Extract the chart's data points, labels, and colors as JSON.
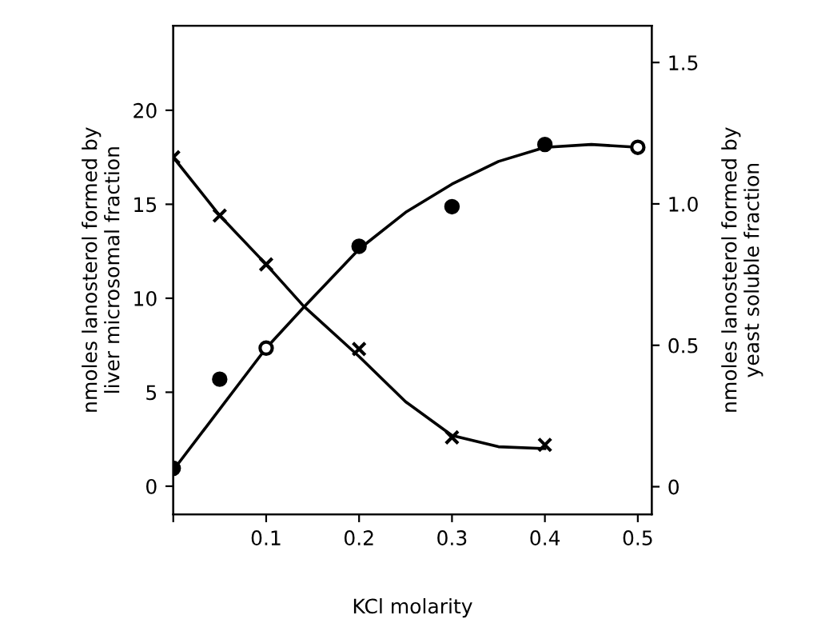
{
  "chart_data": {
    "type": "scatter",
    "xlabel": "KCl molarity",
    "ylabel": "nmoles lanosterol formed by\nliver microsomal fraction",
    "y2label": "nmoles lanosterol formed by\nyeast soluble fraction",
    "xlim": [
      0,
      0.515
    ],
    "xticks": [
      {
        "value": 0,
        "label": null
      },
      0.1,
      0.2,
      0.3,
      0.4,
      0.5
    ],
    "ylim": [
      -1.5,
      24.5
    ],
    "yticks": [
      0,
      5,
      10,
      15,
      20
    ],
    "y2lim": [
      -0.098,
      1.63
    ],
    "y2ticks": [
      0,
      0.5,
      {
        "value": 1.0,
        "label": "1.0"
      },
      1.5
    ],
    "grid": false,
    "series": [
      {
        "marker": "cross",
        "color": "#000000",
        "x": [
          0,
          0.05,
          0.1,
          0.2,
          0.3,
          0.4
        ],
        "values": [
          17.5,
          14.4,
          11.8,
          7.3,
          2.6,
          2.2
        ]
      },
      {
        "type": "line",
        "marker": "none",
        "color": "#000000",
        "x": [
          0,
          0.05,
          0.1,
          0.14,
          0.2,
          0.25,
          0.3,
          0.35,
          0.4
        ],
        "values": [
          17.5,
          14.4,
          11.8,
          9.6,
          6.9,
          4.5,
          2.7,
          2.1,
          2.0
        ]
      },
      {
        "marker": "circle",
        "axis": "y2",
        "color": "#000000",
        "colors": [
          "#000000",
          "#000000",
          "#ffffff",
          "#000000",
          "#000000",
          "#000000",
          "#ffffff"
        ],
        "x": [
          0,
          0.05,
          0.1,
          0.2,
          0.3,
          0.4,
          0.5
        ],
        "values": [
          0.065,
          0.38,
          0.49,
          0.85,
          0.99,
          1.21,
          1.2
        ]
      },
      {
        "type": "line",
        "marker": "none",
        "axis": "y2",
        "color": "#000000",
        "x": [
          0.005,
          0.1,
          0.142,
          0.2,
          0.25,
          0.3,
          0.35,
          0.4,
          0.45,
          0.5
        ],
        "values": [
          0.08,
          0.49,
          0.64,
          0.84,
          0.97,
          1.07,
          1.15,
          1.2,
          1.21,
          1.2
        ]
      }
    ]
  }
}
